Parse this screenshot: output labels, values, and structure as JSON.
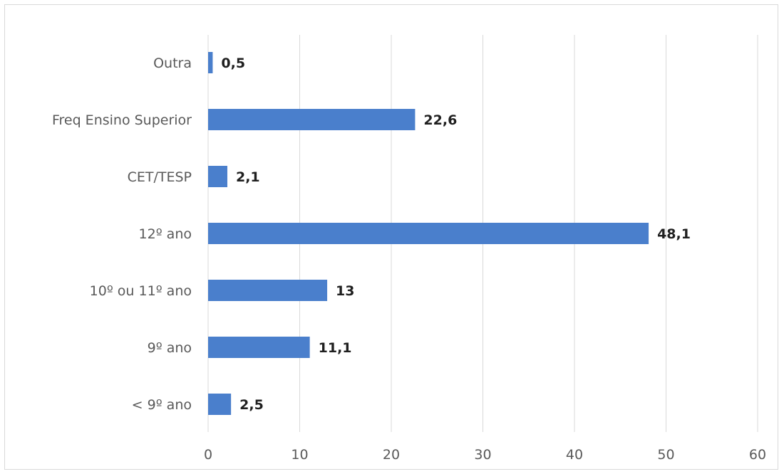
{
  "chart_data": {
    "type": "bar",
    "orientation": "horizontal",
    "categories": [
      "Outra",
      "Freq Ensino Superior",
      "CET/TESP",
      "12º ano",
      "10º ou 11º ano",
      "9º ano",
      "< 9º ano"
    ],
    "values": [
      0.5,
      22.6,
      2.1,
      48.1,
      13,
      11.1,
      2.5
    ],
    "data_labels": [
      "0,5",
      "22,6",
      "2,1",
      "48,1",
      "13",
      "11,1",
      "2,5"
    ],
    "x_ticks": [
      "0",
      "10",
      "20",
      "30",
      "40",
      "50",
      "60"
    ],
    "xlim": [
      0,
      60
    ],
    "grid": true,
    "legend": "none",
    "bar_color": "#4a7fcc"
  }
}
